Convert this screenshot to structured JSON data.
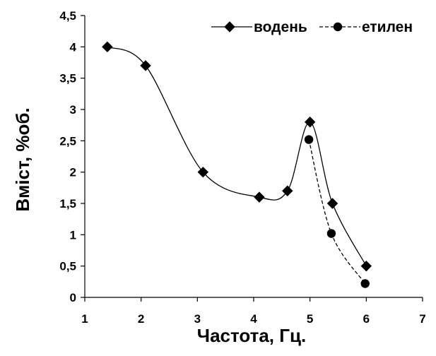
{
  "chart_data": {
    "type": "line",
    "xlabel": "Частота, Гц.",
    "ylabel": "Вміст, %об.",
    "xlim": [
      1,
      7
    ],
    "ylim": [
      0,
      4.5
    ],
    "x_ticks": [
      "1",
      "2",
      "3",
      "4",
      "5",
      "6",
      "7"
    ],
    "y_ticks": [
      "0",
      "0,5",
      "1",
      "1,5",
      "2",
      "2,5",
      "3",
      "3,5",
      "4",
      "4,5"
    ],
    "grid": false,
    "legend_position": "top-right",
    "series": [
      {
        "name": "водень",
        "marker": "diamond",
        "line_style": "solid",
        "color": "#000000",
        "x": [
          1.4,
          2.08,
          3.1,
          4.1,
          4.6,
          5.0,
          5.4,
          6.0
        ],
        "y": [
          4.0,
          3.7,
          2.0,
          1.6,
          1.7,
          2.8,
          1.5,
          0.5
        ]
      },
      {
        "name": "етилен",
        "marker": "circle",
        "line_style": "dashed",
        "color": "#000000",
        "x": [
          4.98,
          5.38,
          5.98
        ],
        "y": [
          2.52,
          1.02,
          0.22
        ]
      }
    ]
  }
}
